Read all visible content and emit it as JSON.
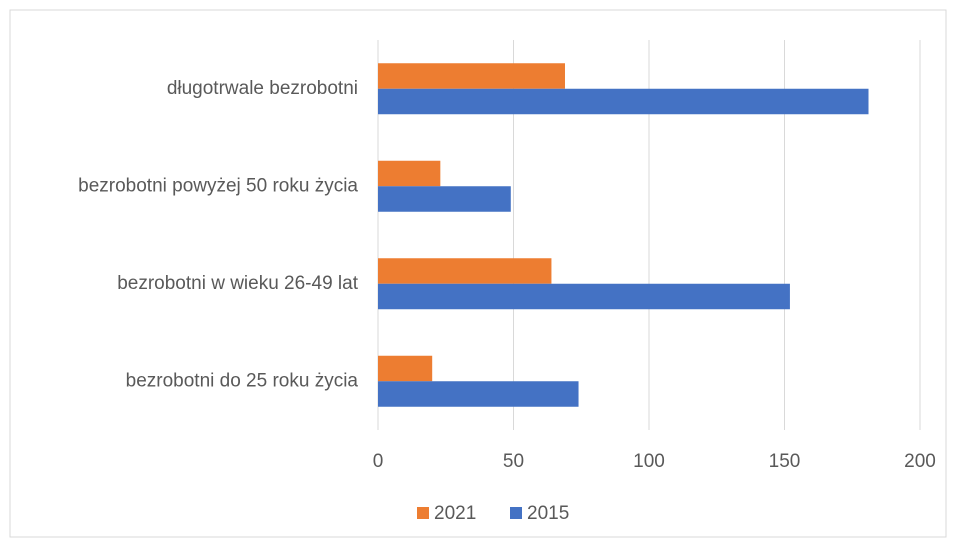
{
  "chart_data": {
    "type": "hbar",
    "categories": [
      "długotrwale bezrobotni",
      "bezrobotni powyżej 50 roku życia",
      "bezrobotni w wieku 26-49 lat",
      "bezrobotni do 25 roku życia"
    ],
    "series": [
      {
        "name": "2021",
        "color": "#ED7D31",
        "values": [
          69,
          23,
          64,
          20
        ]
      },
      {
        "name": "2015",
        "color": "#4472C4",
        "values": [
          181,
          49,
          152,
          74
        ]
      }
    ],
    "xlim": [
      0,
      200
    ],
    "xticks": [
      0,
      50,
      100,
      150,
      200
    ],
    "grid": true,
    "legend": "bottom"
  }
}
